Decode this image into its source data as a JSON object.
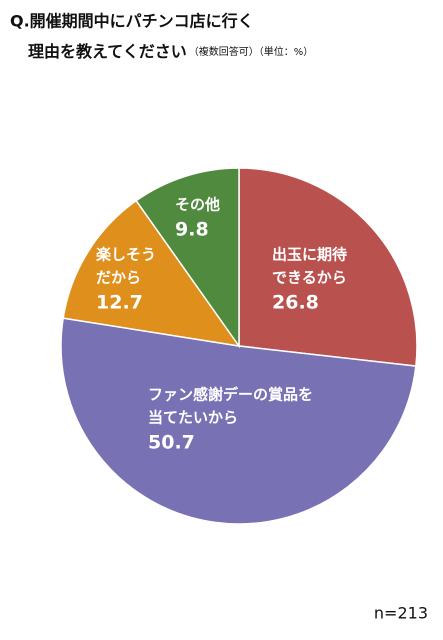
{
  "chart_data": {
    "type": "pie",
    "title": [
      "Q.開催期間中にパチンコ店に行く",
      "理由を教えてください"
    ],
    "subtitle": "（複数回答可）（単位：%）",
    "note": "n=213",
    "categories": [
      [
        "出玉に期待",
        "できるから"
      ],
      [
        "ファン感謝デーの賞品を",
        "当てたいから"
      ],
      [
        "楽しそう",
        "だから"
      ],
      [
        "その他"
      ]
    ],
    "values": [
      26.8,
      50.7,
      12.7,
      9.8
    ],
    "colors": [
      "#b9524f",
      "#7872b4",
      "#df8f1b",
      "#4f8a3e"
    ]
  }
}
